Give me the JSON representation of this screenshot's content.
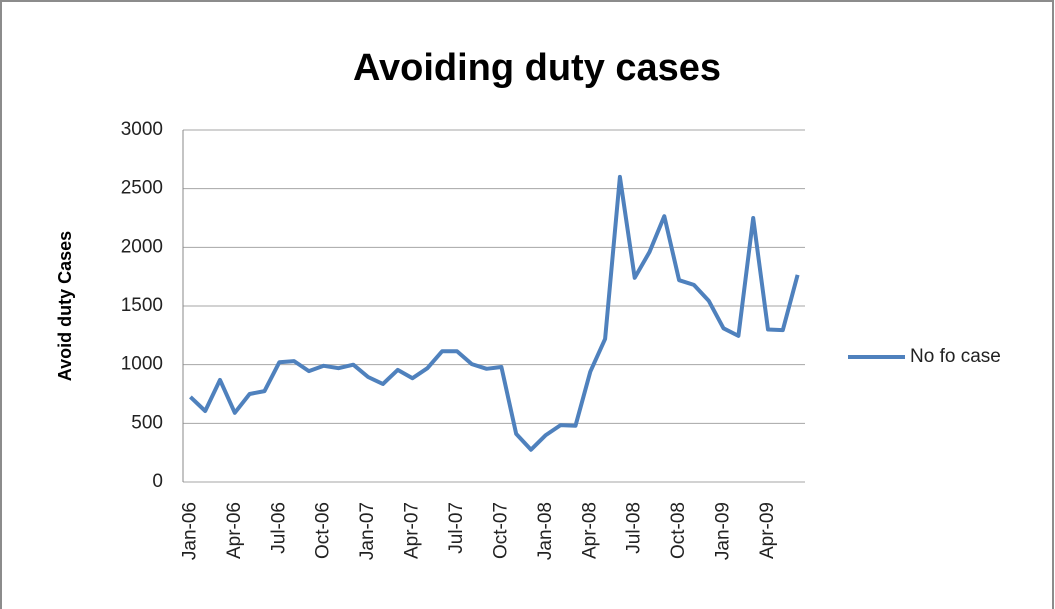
{
  "chart_data": {
    "type": "line",
    "title": "Avoiding duty cases",
    "y_label": "Avoid duty Cases",
    "categories": [
      "Jan-06",
      null,
      null,
      "Apr-06",
      null,
      null,
      "Jul-06",
      null,
      null,
      "Oct-06",
      null,
      null,
      "Jan-07",
      null,
      null,
      "Apr-07",
      null,
      null,
      "Jul-07",
      null,
      null,
      "Oct-07",
      null,
      null,
      "Jan-08",
      null,
      null,
      "Apr-08",
      null,
      null,
      "Jul-08",
      null,
      null,
      "Oct-08",
      null,
      null,
      "Jan-09",
      null,
      null,
      "Apr-09",
      null,
      null
    ],
    "series": [
      {
        "name": "No fo case",
        "color": "#4f81bd",
        "values": [
          725,
          605,
          870,
          590,
          750,
          775,
          1020,
          1030,
          945,
          990,
          970,
          1000,
          895,
          835,
          955,
          885,
          970,
          1115,
          1115,
          1005,
          965,
          980,
          410,
          275,
          400,
          485,
          480,
          940,
          1220,
          2600,
          1740,
          1960,
          2265,
          1720,
          1680,
          1545,
          1310,
          1245,
          2250,
          1300,
          1295,
          1765
        ]
      }
    ],
    "ylim": [
      0,
      3000
    ],
    "yticks": [
      0,
      500,
      1000,
      1500,
      2000,
      2500,
      3000
    ],
    "grid": true,
    "legend": "right"
  }
}
